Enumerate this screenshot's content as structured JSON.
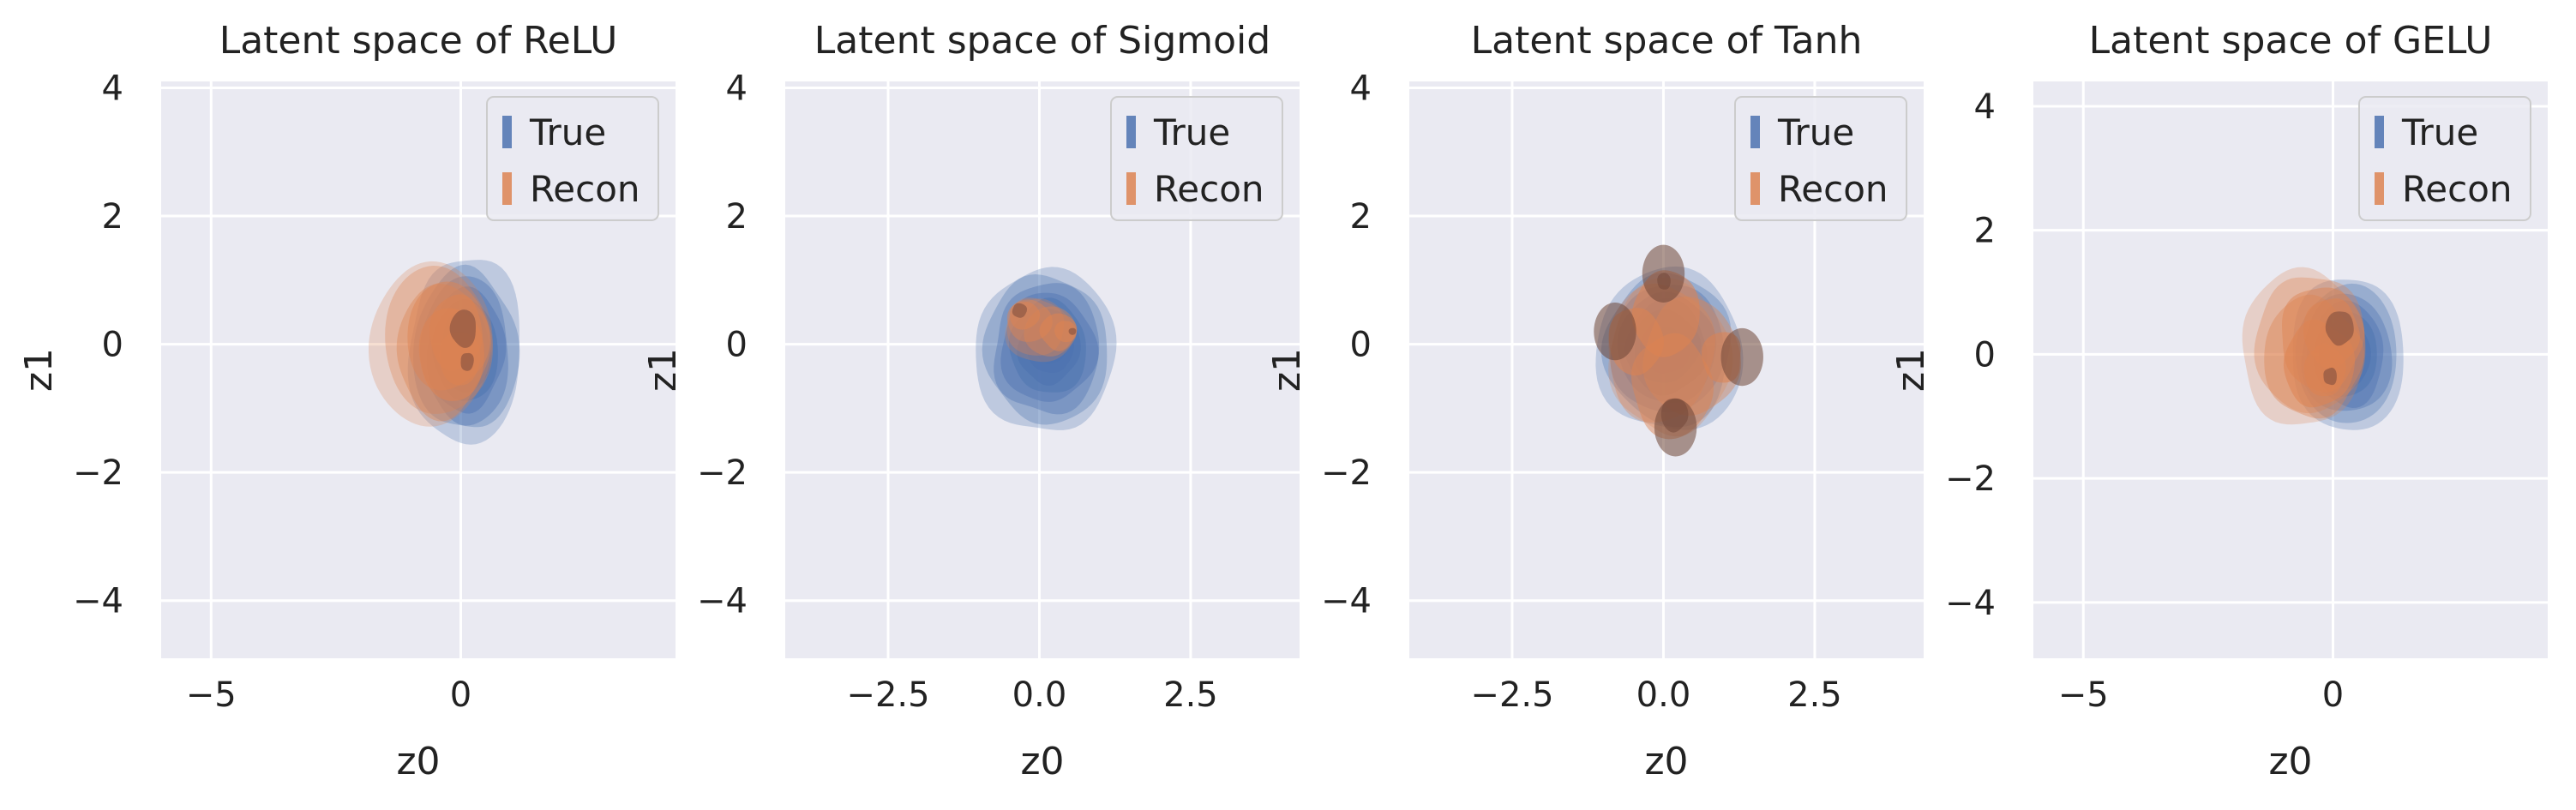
{
  "colors": {
    "axes_background": "#eaeaf2",
    "grid": "#ffffff",
    "true_series": "#4c72b0",
    "recon_series": "#dd8452",
    "text": "#222222"
  },
  "chart_data": [
    {
      "type": "kde",
      "title": "Latent space of ReLU",
      "xlabel": "z0",
      "ylabel": "z1",
      "xlim": [
        -6,
        4.3
      ],
      "ylim": [
        -4.9,
        4.1
      ],
      "xticks": [
        -5,
        0
      ],
      "xtick_labels": [
        "−5",
        "0"
      ],
      "yticks": [
        -4,
        -2,
        0,
        2,
        4
      ],
      "ytick_labels": [
        "−4",
        "−2",
        "0",
        "2",
        "4"
      ],
      "grid": true,
      "legend": {
        "position": "top-right",
        "entries": [
          "True",
          "Recon"
        ]
      },
      "series": [
        {
          "name": "True",
          "center": [
            0.1,
            -0.1
          ],
          "spread": [
            2.3,
            2.9
          ],
          "modes": [
            [
              0.1,
              -0.1
            ]
          ]
        },
        {
          "name": "Recon",
          "center": [
            -0.6,
            0.0
          ],
          "spread": [
            2.4,
            2.6
          ],
          "modes": [
            [
              0.2,
              -0.3
            ],
            [
              0.2,
              0.3
            ]
          ]
        }
      ]
    },
    {
      "type": "kde",
      "title": "Latent space of Sigmoid",
      "xlabel": "z0",
      "ylabel": "z1",
      "xlim": [
        -4.2,
        4.3
      ],
      "ylim": [
        -4.9,
        4.1
      ],
      "xticks": [
        -2.5,
        0.0,
        2.5
      ],
      "xtick_labels": [
        "−2.5",
        "0.0",
        "2.5"
      ],
      "yticks": [
        -4,
        -2,
        0,
        2,
        4
      ],
      "ytick_labels": [
        "−4",
        "−2",
        "0",
        "2",
        "4"
      ],
      "grid": true,
      "legend": {
        "position": "top-right",
        "entries": [
          "True",
          "Recon"
        ]
      },
      "series": [
        {
          "name": "True",
          "center": [
            0.1,
            -0.1
          ],
          "spread": [
            2.3,
            2.6
          ],
          "modes": [
            [
              0.2,
              0.0
            ]
          ]
        },
        {
          "name": "Recon",
          "center": [
            0.0,
            0.2
          ],
          "spread": [
            1.1,
            1.0
          ],
          "modes": [
            [
              0.6,
              0.2
            ],
            [
              -0.4,
              0.6
            ]
          ]
        }
      ]
    },
    {
      "type": "kde",
      "title": "Latent space of Tanh",
      "xlabel": "z0",
      "ylabel": "z1",
      "xlim": [
        -4.2,
        4.3
      ],
      "ylim": [
        -4.9,
        4.1
      ],
      "xticks": [
        -2.5,
        0.0,
        2.5
      ],
      "xtick_labels": [
        "−2.5",
        "0.0",
        "2.5"
      ],
      "yticks": [
        -4,
        -2,
        0,
        2,
        4
      ],
      "ytick_labels": [
        "−4",
        "−2",
        "0",
        "2",
        "4"
      ],
      "grid": true,
      "legend": {
        "position": "top-right",
        "entries": [
          "True",
          "Recon"
        ]
      },
      "series": [
        {
          "name": "True",
          "center": [
            0.1,
            -0.1
          ],
          "spread": [
            2.4,
            2.6
          ],
          "modes": [
            [
              0.0,
              0.0
            ]
          ]
        },
        {
          "name": "Recon",
          "center": [
            0.1,
            -0.2
          ],
          "spread": [
            2.0,
            2.4
          ],
          "modes": [
            [
              0.0,
              1.1
            ],
            [
              -0.8,
              0.2
            ],
            [
              1.3,
              -0.2
            ],
            [
              0.2,
              -1.3
            ]
          ]
        }
      ]
    },
    {
      "type": "kde",
      "title": "Latent space of GELU",
      "xlabel": "z0",
      "ylabel": "z1",
      "xlim": [
        -6,
        4.3
      ],
      "ylim": [
        -4.9,
        4.4
      ],
      "xticks": [
        -5,
        0
      ],
      "xtick_labels": [
        "−5",
        "0"
      ],
      "yticks": [
        -4,
        -2,
        0,
        2,
        4
      ],
      "ytick_labels": [
        "−4",
        "−2",
        "0",
        "2",
        "4"
      ],
      "grid": true,
      "legend": {
        "position": "top-right",
        "entries": [
          "True",
          "Recon"
        ]
      },
      "series": [
        {
          "name": "True",
          "center": [
            0.3,
            0.0
          ],
          "spread": [
            2.3,
            2.5
          ],
          "modes": [
            [
              0.2,
              0.0
            ]
          ]
        },
        {
          "name": "Recon",
          "center": [
            -0.6,
            0.1
          ],
          "spread": [
            2.5,
            2.5
          ],
          "modes": [
            [
              0.0,
              -0.4
            ],
            [
              0.3,
              0.5
            ]
          ]
        }
      ]
    }
  ]
}
